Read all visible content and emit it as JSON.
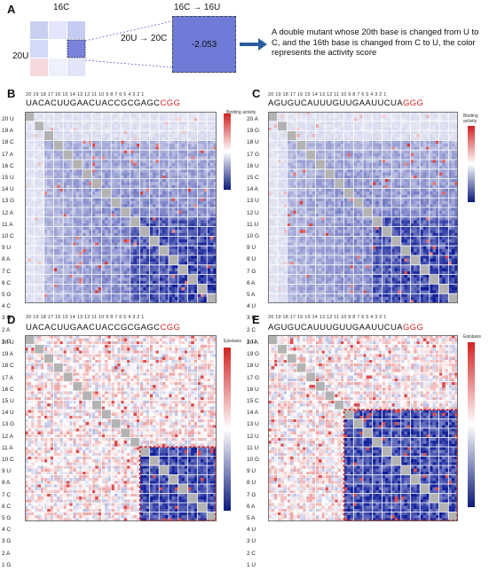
{
  "panel_a": {
    "label": "A",
    "col_label": "16C",
    "row_label": "20U",
    "zoom_col_label": "16C → 16U",
    "zoom_row_label": "20U → 20C",
    "zoom_value": "-2.053",
    "description": "A double mutant whose 20th base is changed from U to C, and the 16th base is changed from C to U, the color represents the activity score"
  },
  "panels": [
    {
      "label": "B",
      "sequence": "UACACUUGAACUACCGCGAGC",
      "suffix": "CGG",
      "colorbar_title": "Binding activity",
      "colorbar_ticks": [
        "4",
        "2",
        "0",
        "-2",
        "-4"
      ],
      "rows": "20 U\n19 A\n18 C\n17 A\n16 C\n15 U\n14 U\n13 G\n12 A\n11 A\n10 C\n9 U\n8 A\n7 C\n6 C\n5 G\n4 C\n3 G\n2 A\n1 G",
      "style": "blue"
    },
    {
      "label": "C",
      "sequence": "AGUGUCAUUUGUUGAAUUCUA",
      "suffix": "GGG",
      "colorbar_title": "Binding activity",
      "colorbar_ticks": [
        "4",
        "2",
        "0",
        "-2",
        "-4"
      ],
      "rows": "20 A\n19 G\n18 U\n17 G\n16 U\n15 C\n14 A\n13 U\n12 U\n11 U\n10 G\n9 U\n8 U\n7 G\n6 A\n5 A\n4 U\n3 U\n2 C\n1 U",
      "style": "blue"
    },
    {
      "label": "D",
      "sequence": "UACACUUGAACUACCGCGAGC",
      "suffix": "CGG",
      "colorbar_title": "Epistasis",
      "colorbar_ticks": [
        "4",
        "2",
        "0",
        "-2",
        "-4"
      ],
      "rows": "20 U\n19 A\n18 C\n17 A\n16 C\n15 U\n14 U\n13 G\n12 A\n11 A\n10 C\n9 U\n8 A\n7 C\n6 C\n5 G\n4 C\n3 G\n2 A\n1 G",
      "style": "mixed"
    },
    {
      "label": "E",
      "sequence": "AGUGUCAUUUGUUGAAUUCUA",
      "suffix": "GGG",
      "colorbar_title": "Epistasis",
      "colorbar_ticks": [
        "4",
        "2",
        "0",
        "-2",
        "-4"
      ],
      "rows": "20 A\n19 G\n18 U\n17 G\n16 U\n15 C\n14 A\n13 U\n12 U\n11 U\n10 G\n9 U\n8 U\n7 G\n6 A\n5 A\n4 U\n3 U\n2 C\n1 U",
      "style": "mixed"
    }
  ],
  "col_numbers": "20 19 18 17 16 15 14 13 12 11 10 9 8 7 6 5 4 3 2 1",
  "colors": {
    "accent": "#2b5d9e",
    "red": "#d22222",
    "blue": "#1f2fb8"
  }
}
